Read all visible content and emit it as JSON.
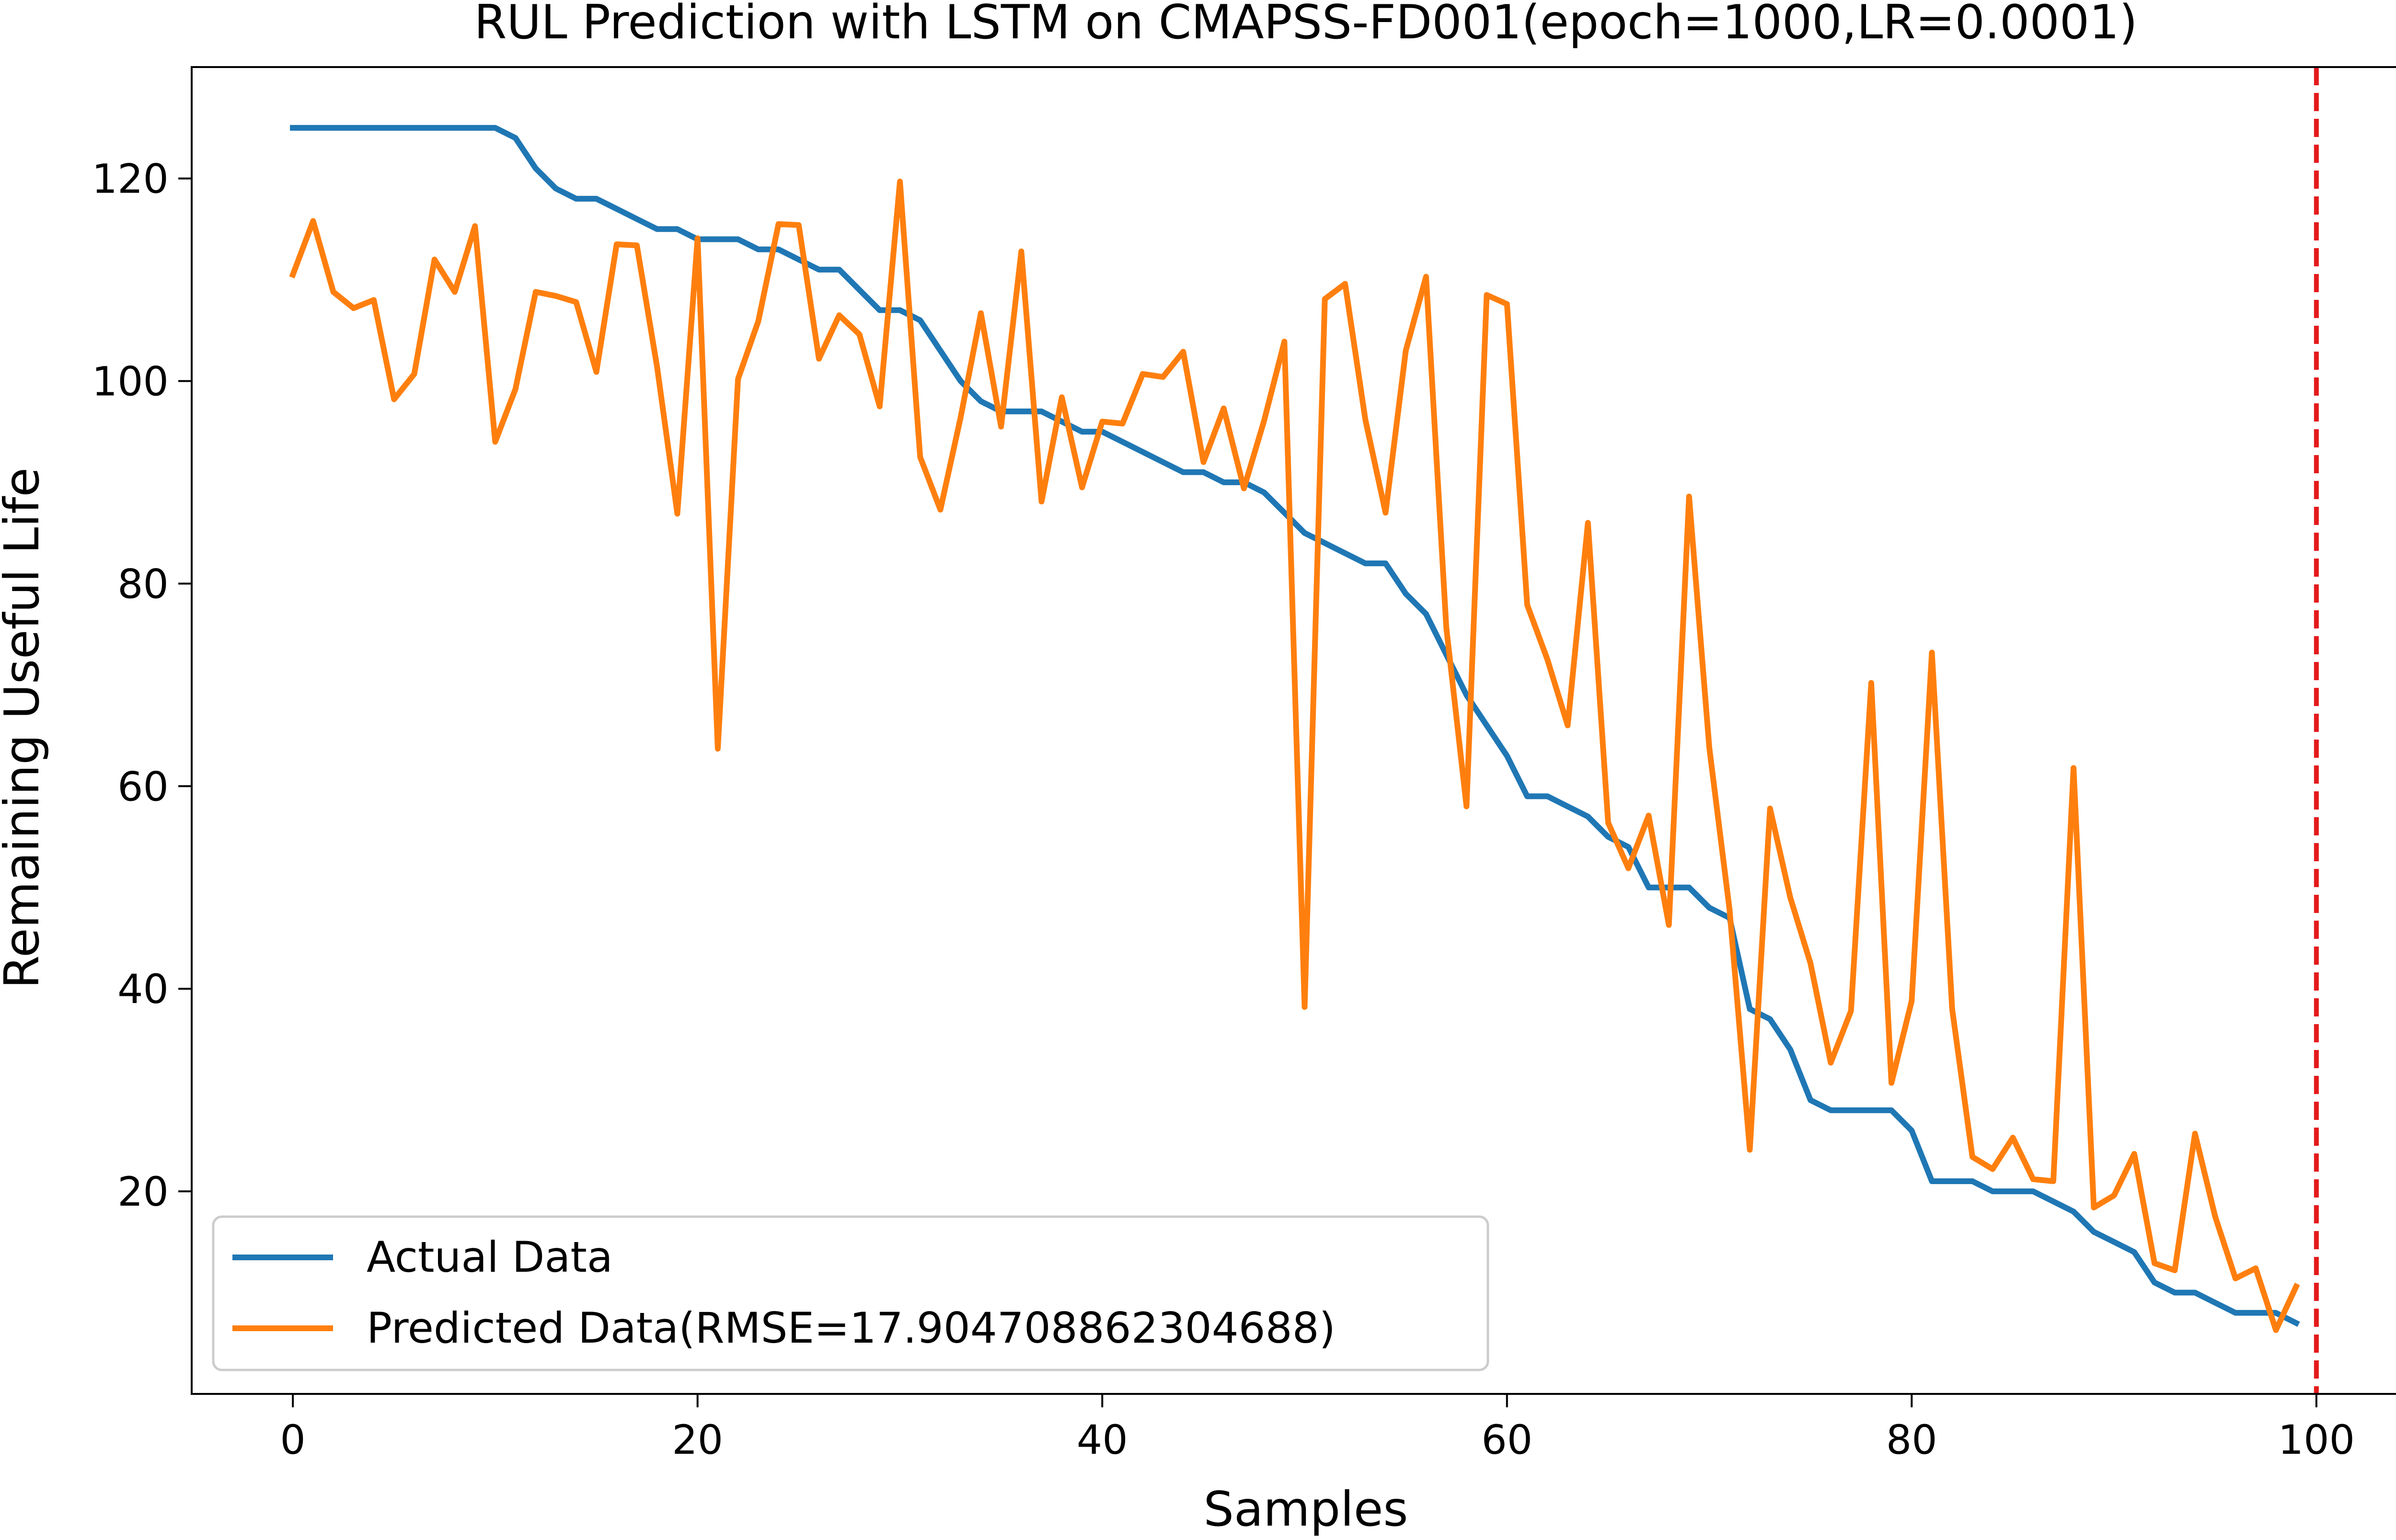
{
  "chart_data": {
    "type": "line",
    "title": "RUL Prediction with LSTM on CMAPSS-FD001(epoch=1000,LR=0.0001)",
    "xlabel": "Samples",
    "ylabel": "Remaining Useful Life",
    "xlim": [
      -5,
      105
    ],
    "ylim": [
      0,
      131
    ],
    "xticks": [
      0,
      20,
      40,
      60,
      80,
      100
    ],
    "yticks": [
      20,
      40,
      60,
      80,
      100,
      120
    ],
    "grid": false,
    "legend_position": "lower-left",
    "vline": {
      "x": 100,
      "color": "#e41a1c",
      "style": "dashed"
    },
    "series": [
      {
        "name": "Actual Data",
        "color": "#1f77b4",
        "values": [
          125,
          125,
          125,
          125,
          125,
          125,
          125,
          125,
          125,
          125,
          125,
          124,
          121,
          119,
          118,
          118,
          117,
          116,
          115,
          115,
          114,
          114,
          114,
          113,
          113,
          112,
          111,
          111,
          109,
          107,
          107,
          106,
          103,
          100,
          98,
          97,
          97,
          97,
          96,
          95,
          95,
          94,
          93,
          92,
          91,
          91,
          90,
          90,
          89,
          87,
          85,
          84,
          83,
          82,
          82,
          79,
          77,
          73,
          69,
          66,
          63,
          59,
          59,
          58,
          57,
          55,
          54,
          50,
          50,
          50,
          48,
          47,
          38,
          37,
          34,
          29,
          28,
          28,
          28,
          28,
          26,
          21,
          21,
          21,
          20,
          20,
          20,
          19,
          18,
          16,
          15,
          14,
          11,
          10,
          10,
          9,
          8,
          8,
          8,
          7
        ]
      },
      {
        "name": "Predicted Data(RMSE=17.904708862304688)",
        "color": "#ff7f0e",
        "values": [
          110.5,
          115.8,
          108.8,
          107.2,
          108.0,
          98.2,
          100.7,
          112.0,
          108.8,
          115.3,
          94.0,
          99.2,
          108.8,
          108.4,
          107.8,
          100.9,
          113.5,
          113.4,
          101.4,
          86.9,
          114.1,
          63.7,
          100.2,
          105.9,
          115.5,
          115.4,
          102.2,
          106.5,
          104.6,
          97.5,
          119.7,
          92.5,
          87.3,
          96.4,
          106.7,
          95.5,
          112.8,
          88.1,
          98.4,
          89.5,
          96.0,
          95.8,
          100.7,
          100.4,
          102.9,
          92.0,
          97.3,
          89.4,
          96.1,
          103.9,
          38.2,
          108.1,
          109.6,
          96.2,
          87.0,
          103.0,
          110.3,
          75.7,
          58.0,
          108.5,
          107.6,
          77.9,
          72.5,
          66.0,
          86.0,
          56.4,
          51.9,
          57.1,
          46.3,
          88.6,
          63.8,
          47.8,
          24.1,
          57.8,
          49.0,
          42.5,
          32.7,
          37.8,
          70.2,
          30.7,
          38.8,
          73.2,
          38.0,
          23.4,
          22.2,
          25.3,
          21.2,
          21.0,
          61.8,
          18.4,
          19.6,
          23.7,
          12.9,
          12.2,
          25.7,
          17.5,
          11.4,
          12.4,
          6.3,
          10.6
        ]
      }
    ]
  }
}
